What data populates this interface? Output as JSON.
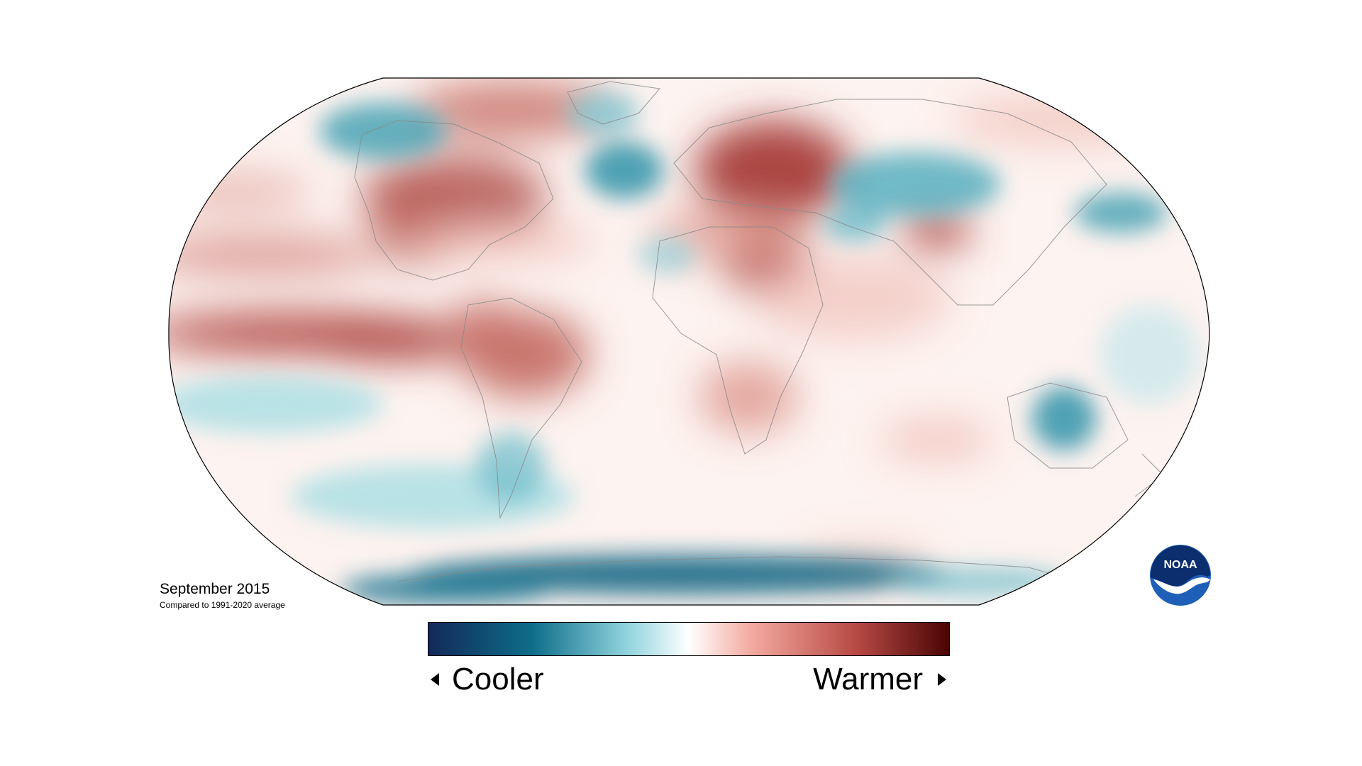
{
  "title": "September 2015",
  "subtitle": "Compared to 1991-2020 average",
  "legend": {
    "cooler_label": "Cooler",
    "warmer_label": "Warmer",
    "colors": [
      "#12295a",
      "#0e6e8a",
      "#8fd3dc",
      "#ffffff",
      "#f3aaa0",
      "#b84a45",
      "#4a0505"
    ]
  },
  "logo": {
    "text": "NOAA",
    "primary_color": "#1f5fb8",
    "secondary_color": "#ffffff"
  },
  "map": {
    "projection": "robinson",
    "background": "#fdf3f0",
    "anomalies": [
      {
        "region": "Equatorial east Pacific (El Niño band)",
        "anomaly": "warmer",
        "color": "#b0453f"
      },
      {
        "region": "Northeast Pacific",
        "anomaly": "warmer",
        "color": "#cf7a72"
      },
      {
        "region": "Eastern Canada / Hudson Bay",
        "anomaly": "warmer",
        "color": "#b55a53"
      },
      {
        "region": "Eastern Europe / Western Russia",
        "anomaly": "warmer",
        "color": "#a63d38"
      },
      {
        "region": "North Africa / Arabia",
        "anomaly": "warmer",
        "color": "#c0605a"
      },
      {
        "region": "South America",
        "anomaly": "warmer",
        "color": "#c06058"
      },
      {
        "region": "Alaska",
        "anomaly": "cooler",
        "color": "#4aa3b5"
      },
      {
        "region": "North Atlantic south of Greenland",
        "anomaly": "cooler",
        "color": "#3a98ad"
      },
      {
        "region": "Central Asia",
        "anomaly": "cooler",
        "color": "#58afc0"
      },
      {
        "region": "Northwest Pacific",
        "anomaly": "cooler",
        "color": "#4aa3b5"
      },
      {
        "region": "Central Australia",
        "anomaly": "cooler",
        "color": "#3a98ad"
      },
      {
        "region": "Antarctica",
        "anomaly": "cooler",
        "color": "#1a6a86"
      },
      {
        "region": "Southeast Pacific",
        "anomaly": "cooler",
        "color": "#a8dde4"
      }
    ]
  }
}
